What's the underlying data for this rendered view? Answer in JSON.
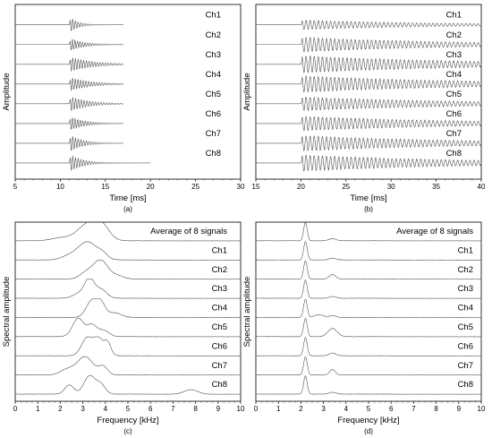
{
  "chart_data": [
    {
      "panel": "a",
      "caption": "(a)",
      "type": "line",
      "xlabel": "Time [ms]",
      "ylabel": "Amplitude",
      "xlim": [
        5,
        30
      ],
      "xticks": [
        5,
        10,
        15,
        20,
        25,
        30
      ],
      "grid": false,
      "channel_labels": [
        "Ch1",
        "Ch2",
        "Ch3",
        "Ch4",
        "Ch5",
        "Ch6",
        "Ch7",
        "Ch8"
      ],
      "series": [
        {
          "name": "Ch1",
          "onset_ms": 11.0,
          "freq_khz": 3.3,
          "peak_amp": 0.95,
          "decay_ms": 0.9,
          "end_ms": 17.0
        },
        {
          "name": "Ch2",
          "onset_ms": 11.0,
          "freq_khz": 3.6,
          "peak_amp": 0.75,
          "decay_ms": 1.5,
          "end_ms": 17.0
        },
        {
          "name": "Ch3",
          "onset_ms": 11.0,
          "freq_khz": 3.3,
          "peak_amp": 0.85,
          "decay_ms": 2.5,
          "end_ms": 17.0
        },
        {
          "name": "Ch4",
          "onset_ms": 11.0,
          "freq_khz": 3.4,
          "peak_amp": 0.8,
          "decay_ms": 2.2,
          "end_ms": 17.0
        },
        {
          "name": "Ch5",
          "onset_ms": 11.0,
          "freq_khz": 3.2,
          "peak_amp": 0.9,
          "decay_ms": 2.0,
          "end_ms": 17.0
        },
        {
          "name": "Ch6",
          "onset_ms": 11.0,
          "freq_khz": 3.5,
          "peak_amp": 0.85,
          "decay_ms": 1.6,
          "end_ms": 17.0
        },
        {
          "name": "Ch7",
          "onset_ms": 11.0,
          "freq_khz": 3.3,
          "peak_amp": 1.0,
          "decay_ms": 1.4,
          "end_ms": 17.0
        },
        {
          "name": "Ch8",
          "onset_ms": 11.0,
          "freq_khz": 3.3,
          "peak_amp": 1.05,
          "decay_ms": 1.4,
          "end_ms": 20.0
        }
      ]
    },
    {
      "panel": "b",
      "caption": "(b)",
      "type": "line",
      "xlabel": "Time [ms]",
      "ylabel": "Amplitude",
      "xlim": [
        15,
        40
      ],
      "xticks": [
        15,
        20,
        25,
        30,
        35,
        40
      ],
      "grid": false,
      "channel_labels": [
        "Ch1",
        "Ch2",
        "Ch3",
        "Ch4",
        "Ch5",
        "Ch6",
        "Ch7",
        "Ch8"
      ],
      "series": [
        {
          "name": "Ch1",
          "onset_ms": 20.0,
          "freq_khz": 2.2,
          "peak_amp": 0.55,
          "decay_ms": 14,
          "end_ms": 40.0
        },
        {
          "name": "Ch2",
          "onset_ms": 20.0,
          "freq_khz": 2.2,
          "peak_amp": 0.85,
          "decay_ms": 16,
          "end_ms": 40.0
        },
        {
          "name": "Ch3",
          "onset_ms": 20.0,
          "freq_khz": 2.2,
          "peak_amp": 1.0,
          "decay_ms": 18,
          "end_ms": 40.0
        },
        {
          "name": "Ch4",
          "onset_ms": 20.0,
          "freq_khz": 2.2,
          "peak_amp": 0.95,
          "decay_ms": 18,
          "end_ms": 40.0
        },
        {
          "name": "Ch5",
          "onset_ms": 20.0,
          "freq_khz": 2.2,
          "peak_amp": 0.8,
          "decay_ms": 17,
          "end_ms": 40.0
        },
        {
          "name": "Ch6",
          "onset_ms": 20.0,
          "freq_khz": 2.2,
          "peak_amp": 0.85,
          "decay_ms": 17,
          "end_ms": 40.0
        },
        {
          "name": "Ch7",
          "onset_ms": 20.0,
          "freq_khz": 2.2,
          "peak_amp": 0.9,
          "decay_ms": 17,
          "end_ms": 40.0
        },
        {
          "name": "Ch8",
          "onset_ms": 20.0,
          "freq_khz": 2.2,
          "peak_amp": 0.95,
          "decay_ms": 17,
          "end_ms": 40.0
        }
      ]
    },
    {
      "panel": "c",
      "caption": "(c)",
      "type": "line",
      "xlabel": "Frequency [kHz]",
      "ylabel": "Spectral amplitude",
      "xlim": [
        0,
        10
      ],
      "xticks": [
        0,
        1,
        2,
        3,
        4,
        5,
        6,
        7,
        8,
        9,
        10
      ],
      "grid": false,
      "channel_labels": [
        "Average of 8 signals",
        "Ch1",
        "Ch2",
        "Ch3",
        "Ch4",
        "Ch5",
        "Ch6",
        "Ch7",
        "Ch8"
      ],
      "series": [
        {
          "name": "Average of 8 signals",
          "peaks": [
            [
              2.0,
              0.15,
              0.4
            ],
            [
              3.3,
              1.0,
              0.5
            ],
            [
              3.9,
              0.5,
              0.3
            ]
          ]
        },
        {
          "name": "Ch1",
          "peaks": [
            [
              2.3,
              0.15,
              0.3
            ],
            [
              3.2,
              1.0,
              0.45
            ],
            [
              3.9,
              0.2,
              0.2
            ]
          ]
        },
        {
          "name": "Ch2",
          "peaks": [
            [
              3.2,
              0.4,
              0.3
            ],
            [
              3.8,
              1.0,
              0.3
            ],
            [
              4.5,
              0.2,
              0.3
            ]
          ]
        },
        {
          "name": "Ch3",
          "peaks": [
            [
              2.9,
              0.3,
              0.3
            ],
            [
              3.3,
              1.0,
              0.2
            ],
            [
              3.8,
              0.5,
              0.25
            ]
          ]
        },
        {
          "name": "Ch4",
          "peaks": [
            [
              3.4,
              0.9,
              0.25
            ],
            [
              3.8,
              0.7,
              0.2
            ],
            [
              4.4,
              0.25,
              0.3
            ]
          ]
        },
        {
          "name": "Ch5",
          "peaks": [
            [
              2.8,
              1.0,
              0.25
            ],
            [
              3.4,
              0.6,
              0.2
            ],
            [
              3.9,
              0.35,
              0.25
            ]
          ]
        },
        {
          "name": "Ch6",
          "peaks": [
            [
              3.2,
              1.0,
              0.25
            ],
            [
              3.7,
              0.9,
              0.2
            ],
            [
              4.1,
              0.7,
              0.15
            ]
          ]
        },
        {
          "name": "Ch7",
          "peaks": [
            [
              2.3,
              0.3,
              0.3
            ],
            [
              3.1,
              1.0,
              0.35
            ],
            [
              3.9,
              0.45,
              0.2
            ]
          ]
        },
        {
          "name": "Ch8",
          "peaks": [
            [
              2.4,
              0.5,
              0.2
            ],
            [
              3.3,
              1.0,
              0.25
            ],
            [
              3.8,
              0.5,
              0.2
            ],
            [
              7.8,
              0.25,
              0.3
            ]
          ]
        }
      ]
    },
    {
      "panel": "d",
      "caption": "(d)",
      "type": "line",
      "xlabel": "Frequency [kHz]",
      "ylabel": "Spectral amplitude",
      "xlim": [
        0,
        10
      ],
      "xticks": [
        0,
        1,
        2,
        3,
        4,
        5,
        6,
        7,
        8,
        9,
        10
      ],
      "grid": false,
      "channel_labels": [
        "Average of 8 signals",
        "Ch1",
        "Ch2",
        "Ch3",
        "Ch4",
        "Ch5",
        "Ch6",
        "Ch7",
        "Ch8"
      ],
      "series": [
        {
          "name": "Average of 8 signals",
          "peaks": [
            [
              2.2,
              1.0,
              0.08
            ],
            [
              3.4,
              0.12,
              0.15
            ]
          ]
        },
        {
          "name": "Ch1",
          "peaks": [
            [
              2.2,
              1.0,
              0.08
            ],
            [
              3.4,
              0.1,
              0.15
            ]
          ]
        },
        {
          "name": "Ch2",
          "peaks": [
            [
              2.2,
              1.0,
              0.08
            ],
            [
              3.4,
              0.25,
              0.15
            ]
          ]
        },
        {
          "name": "Ch3",
          "peaks": [
            [
              2.2,
              1.0,
              0.08
            ],
            [
              3.4,
              0.1,
              0.15
            ]
          ]
        },
        {
          "name": "Ch4",
          "peaks": [
            [
              2.2,
              1.0,
              0.08
            ],
            [
              2.8,
              0.15,
              0.2
            ],
            [
              3.4,
              0.1,
              0.15
            ]
          ]
        },
        {
          "name": "Ch5",
          "peaks": [
            [
              2.2,
              1.0,
              0.08
            ],
            [
              3.4,
              0.45,
              0.2
            ]
          ]
        },
        {
          "name": "Ch6",
          "peaks": [
            [
              2.2,
              1.0,
              0.08
            ],
            [
              3.4,
              0.15,
              0.15
            ]
          ]
        },
        {
          "name": "Ch7",
          "peaks": [
            [
              2.2,
              1.0,
              0.08
            ],
            [
              3.4,
              0.3,
              0.12
            ]
          ]
        },
        {
          "name": "Ch8",
          "peaks": [
            [
              2.2,
              1.0,
              0.08
            ],
            [
              3.4,
              0.1,
              0.15
            ]
          ]
        }
      ]
    }
  ]
}
